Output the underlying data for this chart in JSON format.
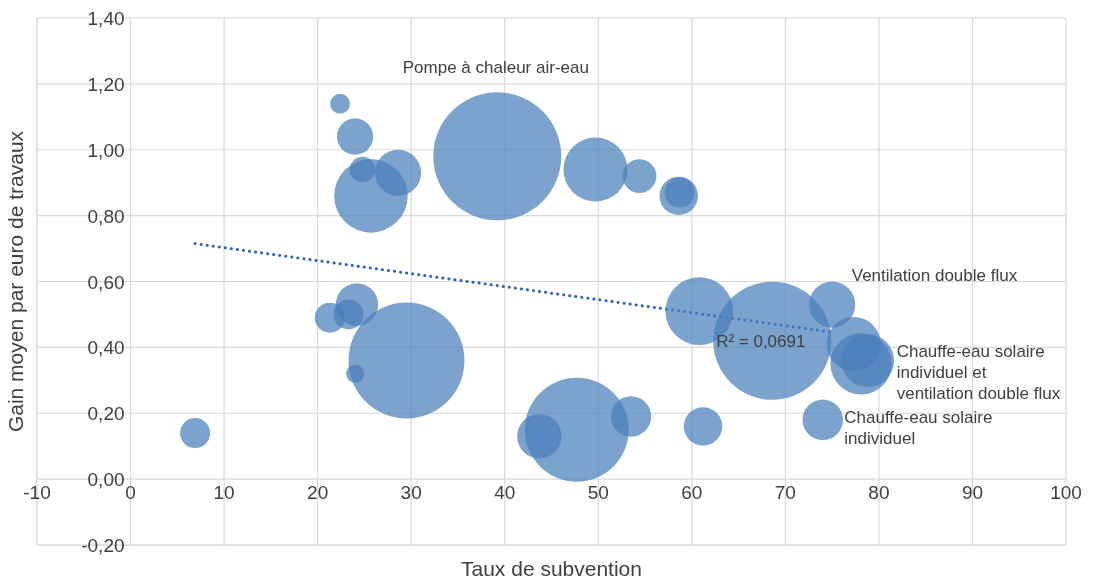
{
  "chart_data": {
    "type": "bubble",
    "xlabel": "Taux de subvention",
    "ylabel": "Gain moyen par euro de travaux",
    "xlim": [
      -10,
      100
    ],
    "xticks": [
      -10,
      0,
      10,
      20,
      30,
      40,
      50,
      60,
      70,
      80,
      90,
      100
    ],
    "ylim": [
      -0.2,
      1.4
    ],
    "yticks": [
      {
        "value": -0.2,
        "label": "-0,20"
      },
      {
        "value": 0,
        "label": "0,00"
      },
      {
        "value": 0.2,
        "label": "0,20"
      },
      {
        "value": 0.4,
        "label": "0,40"
      },
      {
        "value": 0.6,
        "label": "0,60"
      },
      {
        "value": 0.8,
        "label": "0,80"
      },
      {
        "value": 1.0,
        "label": "1,00"
      },
      {
        "value": 1.2,
        "label": "1,20"
      },
      {
        "value": 1.4,
        "label": "1,40"
      }
    ],
    "grid": true,
    "legend": false,
    "series": [
      {
        "color": "#4a7ebb",
        "x": [
          6.9,
          22.4,
          24.0,
          24.8,
          25.7,
          28.6,
          39.2,
          49.7,
          54.4,
          58.6,
          58.7,
          21.3,
          23.3,
          24.2,
          29.5,
          24.0,
          43.7,
          47.7,
          53.5,
          61.2,
          60.8,
          68.6,
          75.0,
          77.3,
          78.1,
          78.8,
          74.0
        ],
        "values": [
          0.14,
          1.14,
          1.04,
          0.94,
          0.86,
          0.93,
          0.98,
          0.94,
          0.92,
          0.86,
          0.87,
          0.49,
          0.5,
          0.53,
          0.36,
          0.32,
          0.13,
          0.15,
          0.19,
          0.16,
          0.51,
          0.42,
          0.53,
          0.41,
          0.35,
          0.36,
          0.18
        ],
        "sizes": [
          0.055,
          0.024,
          0.08,
          0.04,
          0.33,
          0.13,
          1,
          0.25,
          0.07,
          0.09,
          0.055,
          0.055,
          0.055,
          0.11,
          0.82,
          0.02,
          0.12,
          0.66,
          0.1,
          0.09,
          0.28,
          0.85,
          0.13,
          0.18,
          0.23,
          0.17,
          0.1
        ]
      },
      {
        "type": "line",
        "color": "#2e62b8",
        "line_style": "dotted",
        "x": [
          6.9,
          74.8
        ],
        "values": [
          0.715,
          0.447
        ]
      }
    ],
    "annotations": [
      "Pompe à chaleur air-eau",
      "Ventilation double flux",
      "Chauffe-eau solaire\nindividuel et\nventilation double flux",
      "Chauffe-eau solaire\nindividuel",
      "R² = 0,0691"
    ]
  }
}
